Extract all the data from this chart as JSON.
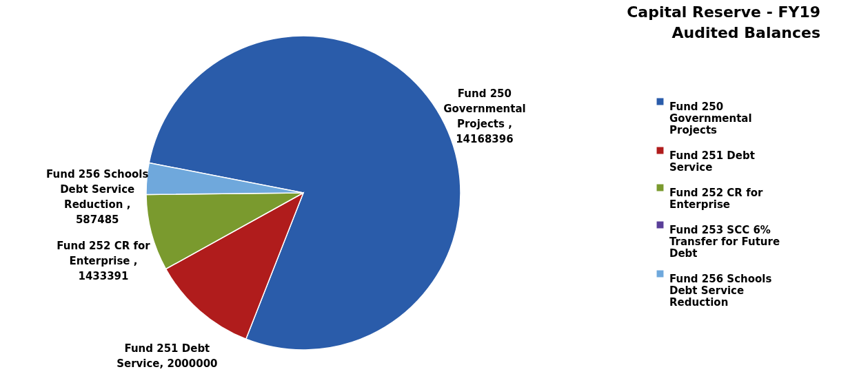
{
  "chart_data": {
    "type": "pie",
    "title": "Capital Reserve - FY19 Audited Balances",
    "categories": [
      "Fund 250 Governmental Projects",
      "Fund 251 Debt Service",
      "Fund 252 CR for Enterprise",
      "Fund 253 SCC 6% Transfer for Future Debt",
      "Fund 256 Schools Debt Service Reduction"
    ],
    "values": [
      14168396,
      2000000,
      1433391,
      null,
      587485
    ],
    "colors": [
      "#2a5caa",
      "#b01c1c",
      "#7a9a2e",
      "#5a3f99",
      "#6fa8dc"
    ],
    "value_labels": [
      "Fund 250 Governmental Projects , 14168396",
      "Fund 251 Debt Service, 2000000",
      "Fund 252 CR for Enterprise , 1433391",
      null,
      "Fund 256 Schools Debt Service Reduction , 587485"
    ],
    "legend": "right"
  }
}
